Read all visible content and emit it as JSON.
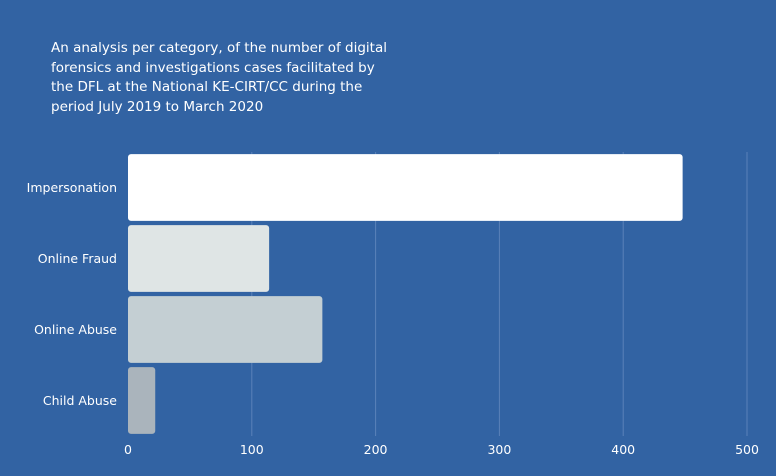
{
  "chart_data": {
    "type": "bar",
    "orientation": "horizontal",
    "title": "An analysis per category, of the number of digital forensics and investigations cases facilitated by the DFL at the National KE-CIRT/CC during the period July 2019 to March 2020",
    "categories": [
      "Impersonation",
      "Online Fraud",
      "Online Abuse",
      "Child Abuse"
    ],
    "values": [
      448,
      114,
      157,
      22
    ],
    "xlim": [
      0,
      500
    ],
    "xticks": [
      "0",
      "100",
      "200",
      "300",
      "400",
      "500"
    ],
    "grid": true,
    "bar_colors": [
      "#ffffff",
      "#dfe5e5",
      "#c4cfd3",
      "#aab4bc"
    ]
  },
  "colors": {
    "background": "#3263a3",
    "grid": "#5a82b9",
    "text": "#ffffff"
  }
}
